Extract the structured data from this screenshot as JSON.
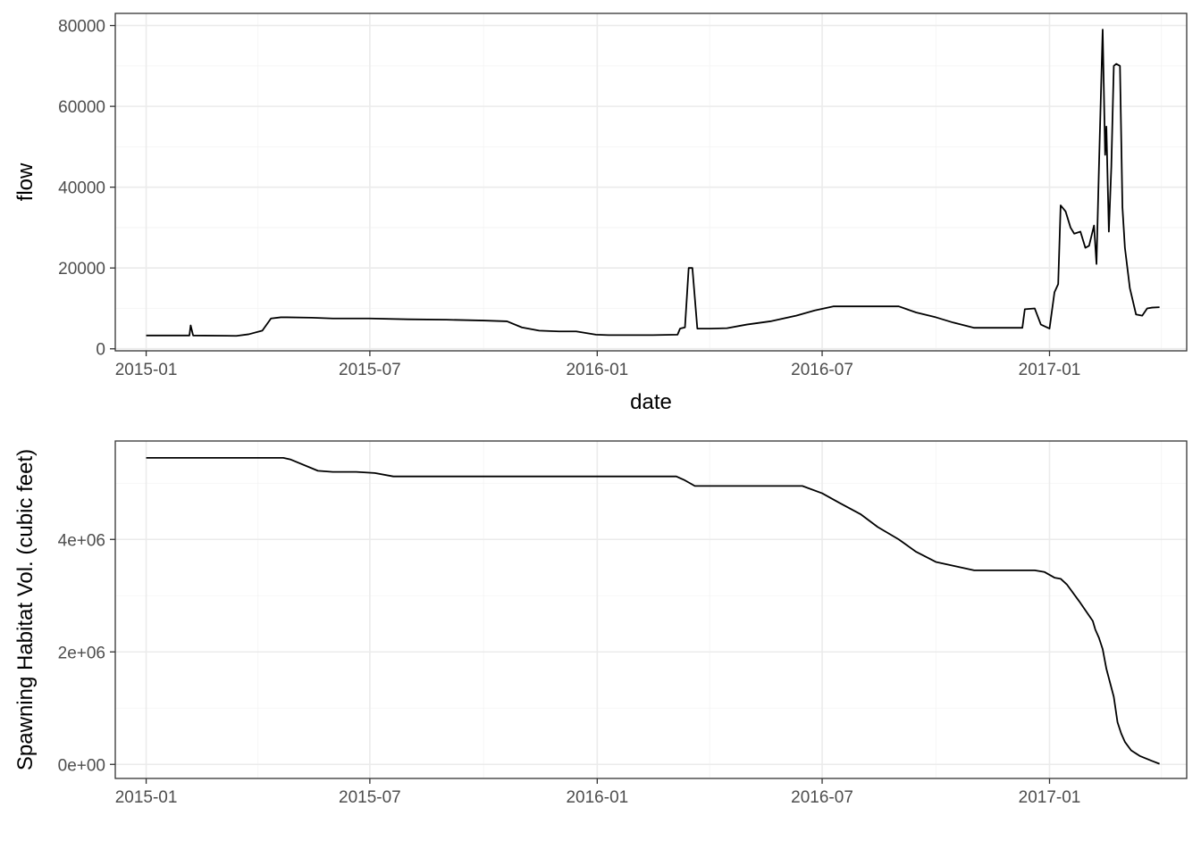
{
  "chart_data": [
    {
      "type": "line",
      "xlabel": "date",
      "ylabel": "flow",
      "xlim": [
        "2014-12-07",
        "2017-04-22"
      ],
      "ylim": [
        -500,
        83000
      ],
      "x_ticks": [
        "2015-01-01",
        "2015-07-01",
        "2016-01-01",
        "2016-07-01",
        "2017-01-01"
      ],
      "x_tick_labels": [
        "2015-01",
        "2015-07",
        "2016-01",
        "2016-07",
        "2017-01"
      ],
      "y_ticks": [
        0,
        20000,
        40000,
        60000,
        80000
      ],
      "y_tick_labels": [
        "0",
        "20000",
        "40000",
        "60000",
        "80000"
      ],
      "grid": true,
      "series": [
        {
          "color": "#000000",
          "x": [
            "2015-01-01",
            "2015-02-05",
            "2015-02-06",
            "2015-02-08",
            "2015-03-15",
            "2015-03-25",
            "2015-04-05",
            "2015-04-12",
            "2015-04-20",
            "2015-04-25",
            "2015-05-15",
            "2015-06-01",
            "2015-07-01",
            "2015-08-01",
            "2015-09-01",
            "2015-10-01",
            "2015-10-20",
            "2015-11-01",
            "2015-11-15",
            "2015-12-01",
            "2015-12-15",
            "2015-12-31",
            "2016-01-10",
            "2016-02-15",
            "2016-03-06",
            "2016-03-08",
            "2016-03-12",
            "2016-03-15",
            "2016-03-18",
            "2016-03-22",
            "2016-03-26",
            "2016-04-01",
            "2016-04-15",
            "2016-05-01",
            "2016-05-20",
            "2016-06-10",
            "2016-06-25",
            "2016-07-10",
            "2016-08-01",
            "2016-09-01",
            "2016-09-15",
            "2016-10-01",
            "2016-10-15",
            "2016-11-01",
            "2016-12-10",
            "2016-12-12",
            "2016-12-20",
            "2016-12-25",
            "2017-01-01",
            "2017-01-05",
            "2017-01-08",
            "2017-01-10",
            "2017-01-14",
            "2017-01-18",
            "2017-01-21",
            "2017-01-26",
            "2017-01-30",
            "2017-02-02",
            "2017-02-06",
            "2017-02-08",
            "2017-02-10",
            "2017-02-13",
            "2017-02-15",
            "2017-02-16",
            "2017-02-18",
            "2017-02-20",
            "2017-02-22",
            "2017-02-24",
            "2017-02-27",
            "2017-03-01",
            "2017-03-03",
            "2017-03-07",
            "2017-03-12",
            "2017-03-17",
            "2017-03-21",
            "2017-03-25",
            "2017-03-31"
          ],
          "y": [
            3300,
            3300,
            5800,
            3300,
            3200,
            3600,
            4500,
            7500,
            7800,
            7800,
            7700,
            7500,
            7500,
            7300,
            7200,
            7000,
            6800,
            5300,
            4500,
            4300,
            4300,
            3500,
            3400,
            3400,
            3500,
            5000,
            5300,
            20000,
            20000,
            5000,
            5000,
            5000,
            5100,
            6000,
            6800,
            8200,
            9500,
            10500,
            10500,
            10500,
            9000,
            7800,
            6500,
            5200,
            5200,
            9800,
            10000,
            6000,
            5000,
            14000,
            16000,
            35500,
            34000,
            30000,
            28500,
            29000,
            25000,
            25500,
            30500,
            21000,
            45000,
            79000,
            48000,
            55000,
            29000,
            45000,
            70000,
            70500,
            70000,
            35000,
            25000,
            15000,
            8500,
            8200,
            10000,
            10200,
            10300
          ]
        }
      ]
    },
    {
      "type": "line",
      "xlabel": "",
      "ylabel": "Spawning Habitat Vol. (cubic feet)",
      "xlim": [
        "2014-12-07",
        "2017-04-22"
      ],
      "ylim": [
        -250000,
        5750000
      ],
      "x_ticks": [
        "2015-01-01",
        "2015-07-01",
        "2016-01-01",
        "2016-07-01",
        "2017-01-01"
      ],
      "x_tick_labels": [
        "2015-01",
        "2015-07",
        "2016-01",
        "2016-07",
        "2017-01"
      ],
      "y_ticks": [
        0,
        2000000,
        4000000
      ],
      "y_tick_labels": [
        "0e+00",
        "2e+06",
        "4e+06"
      ],
      "grid": true,
      "series": [
        {
          "color": "#000000",
          "x": [
            "2015-01-01",
            "2015-04-22",
            "2015-04-28",
            "2015-05-20",
            "2015-06-01",
            "2015-06-20",
            "2015-07-05",
            "2015-07-20",
            "2015-08-01",
            "2015-12-31",
            "2016-03-05",
            "2016-03-12",
            "2016-03-20",
            "2016-04-15",
            "2016-05-01",
            "2016-06-01",
            "2016-06-15",
            "2016-07-01",
            "2016-07-15",
            "2016-08-01",
            "2016-08-15",
            "2016-09-01",
            "2016-09-15",
            "2016-10-01",
            "2016-11-01",
            "2016-12-01",
            "2016-12-20",
            "2016-12-28",
            "2017-01-05",
            "2017-01-10",
            "2017-01-15",
            "2017-01-25",
            "2017-02-05",
            "2017-02-07",
            "2017-02-10",
            "2017-02-13",
            "2017-02-16",
            "2017-02-19",
            "2017-02-22",
            "2017-02-25",
            "2017-02-28",
            "2017-03-03",
            "2017-03-08",
            "2017-03-15",
            "2017-03-25",
            "2017-03-31"
          ],
          "y": [
            5450000,
            5450000,
            5420000,
            5220000,
            5200000,
            5200000,
            5180000,
            5120000,
            5120000,
            5120000,
            5120000,
            5050000,
            4950000,
            4950000,
            4950000,
            4950000,
            4950000,
            4820000,
            4650000,
            4450000,
            4220000,
            4000000,
            3780000,
            3600000,
            3450000,
            3450000,
            3450000,
            3420000,
            3320000,
            3300000,
            3200000,
            2900000,
            2550000,
            2400000,
            2250000,
            2050000,
            1700000,
            1450000,
            1200000,
            750000,
            550000,
            400000,
            250000,
            150000,
            60000,
            10000
          ]
        }
      ]
    }
  ]
}
